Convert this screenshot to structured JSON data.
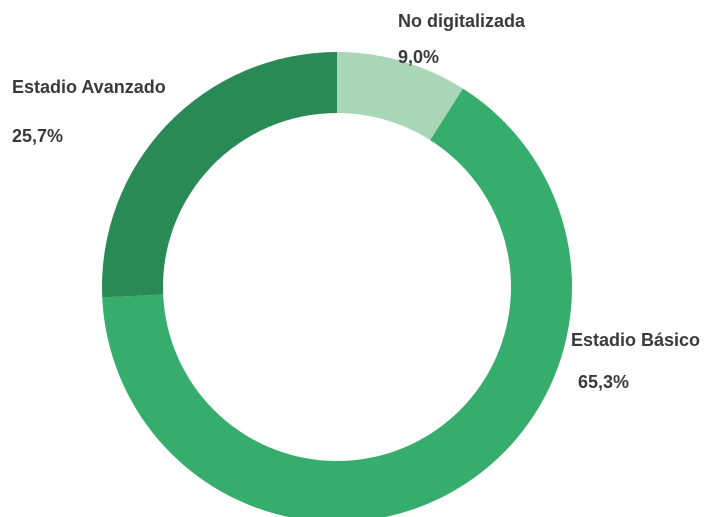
{
  "chart_data": {
    "type": "donut",
    "categories": [
      "No digitalizada",
      "Estadio Básico",
      "Estadio Avanzado"
    ],
    "values": [
      9.0,
      65.3,
      25.7
    ],
    "value_labels": [
      "9,0%",
      "65,3%",
      "25,7%"
    ],
    "colors": [
      "#a9d6b6",
      "#36ad6d",
      "#2a8a56"
    ]
  }
}
